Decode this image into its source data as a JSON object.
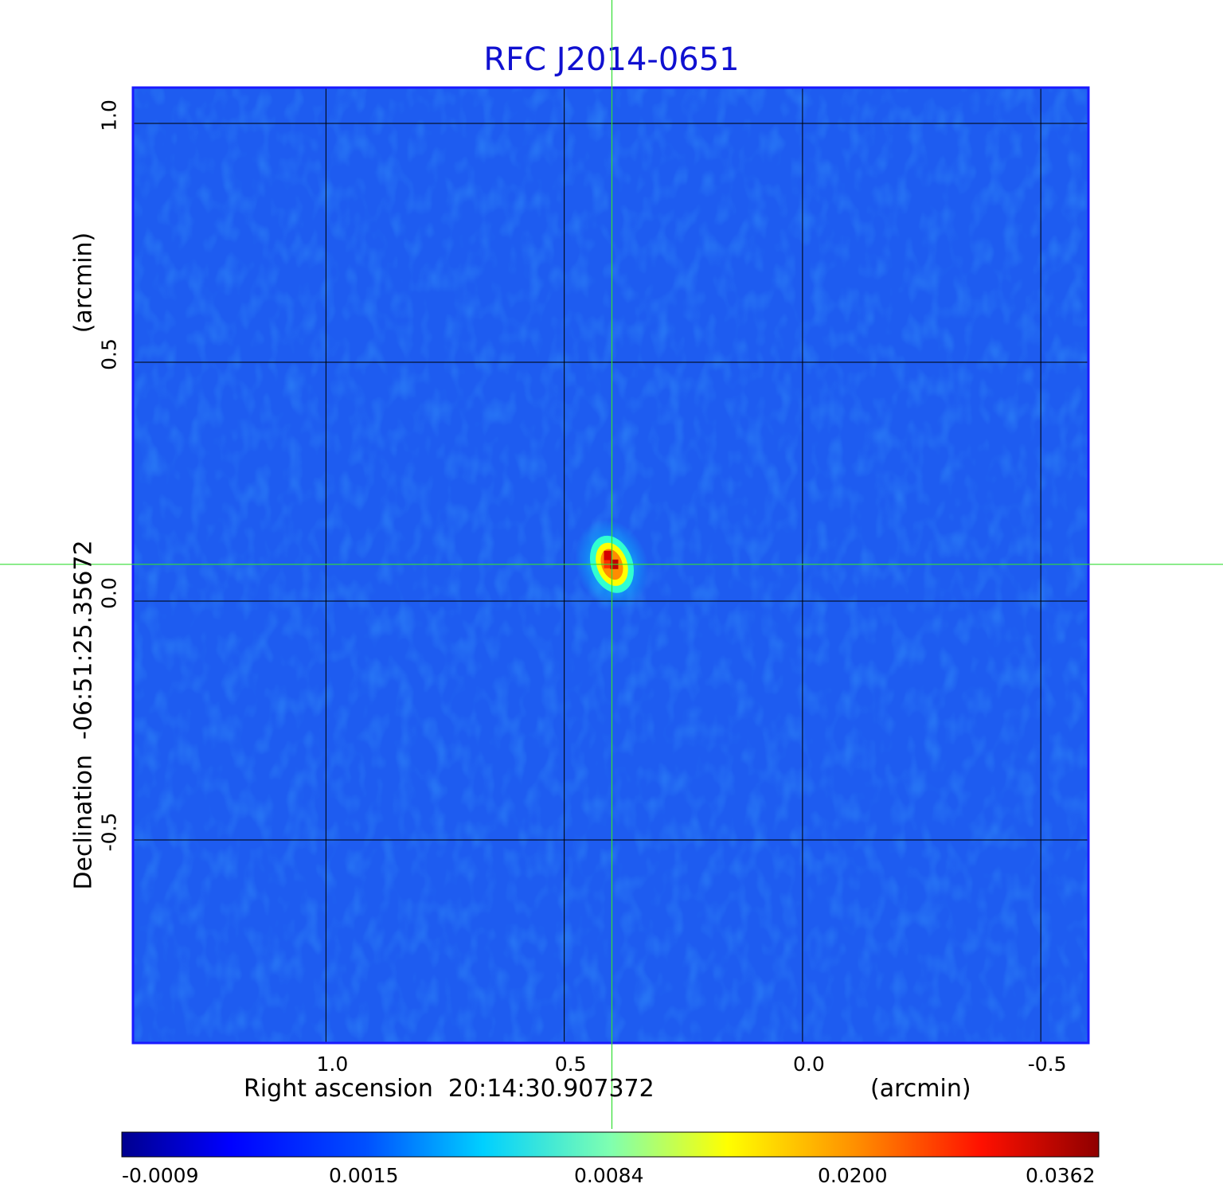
{
  "chart_data": {
    "type": "heatmap",
    "title": "RFC J2014-0651",
    "xlabel": "Right ascension  20:14:30.907372",
    "xunit": "(arcmin)",
    "ylabel": "Declination  -06:51:25.35672",
    "yunit": "(arcmin)",
    "xlim": [
      1.405,
      -0.6
    ],
    "ylim": [
      -0.925,
      1.075
    ],
    "x_ticks": [
      "1.0",
      "0.5",
      "0.0",
      "-0.5"
    ],
    "y_ticks": [
      "1.0",
      "0.5",
      "0.0",
      "-0.5"
    ],
    "grid": true,
    "crosshair": {
      "x": 0.4,
      "y": 0.077
    },
    "source_peak": {
      "x": 0.4,
      "y": 0.077,
      "value": 0.0362
    },
    "colorbar": {
      "colormap": "jet",
      "tick_labels": [
        "-0.0009",
        "0.0015",
        "0.0084",
        "0.0200",
        "0.0362"
      ]
    }
  },
  "colors": {
    "title": "#1010d0",
    "crosshair": "#33dd33",
    "grid": "#000000",
    "frame": "#1a1aff"
  }
}
